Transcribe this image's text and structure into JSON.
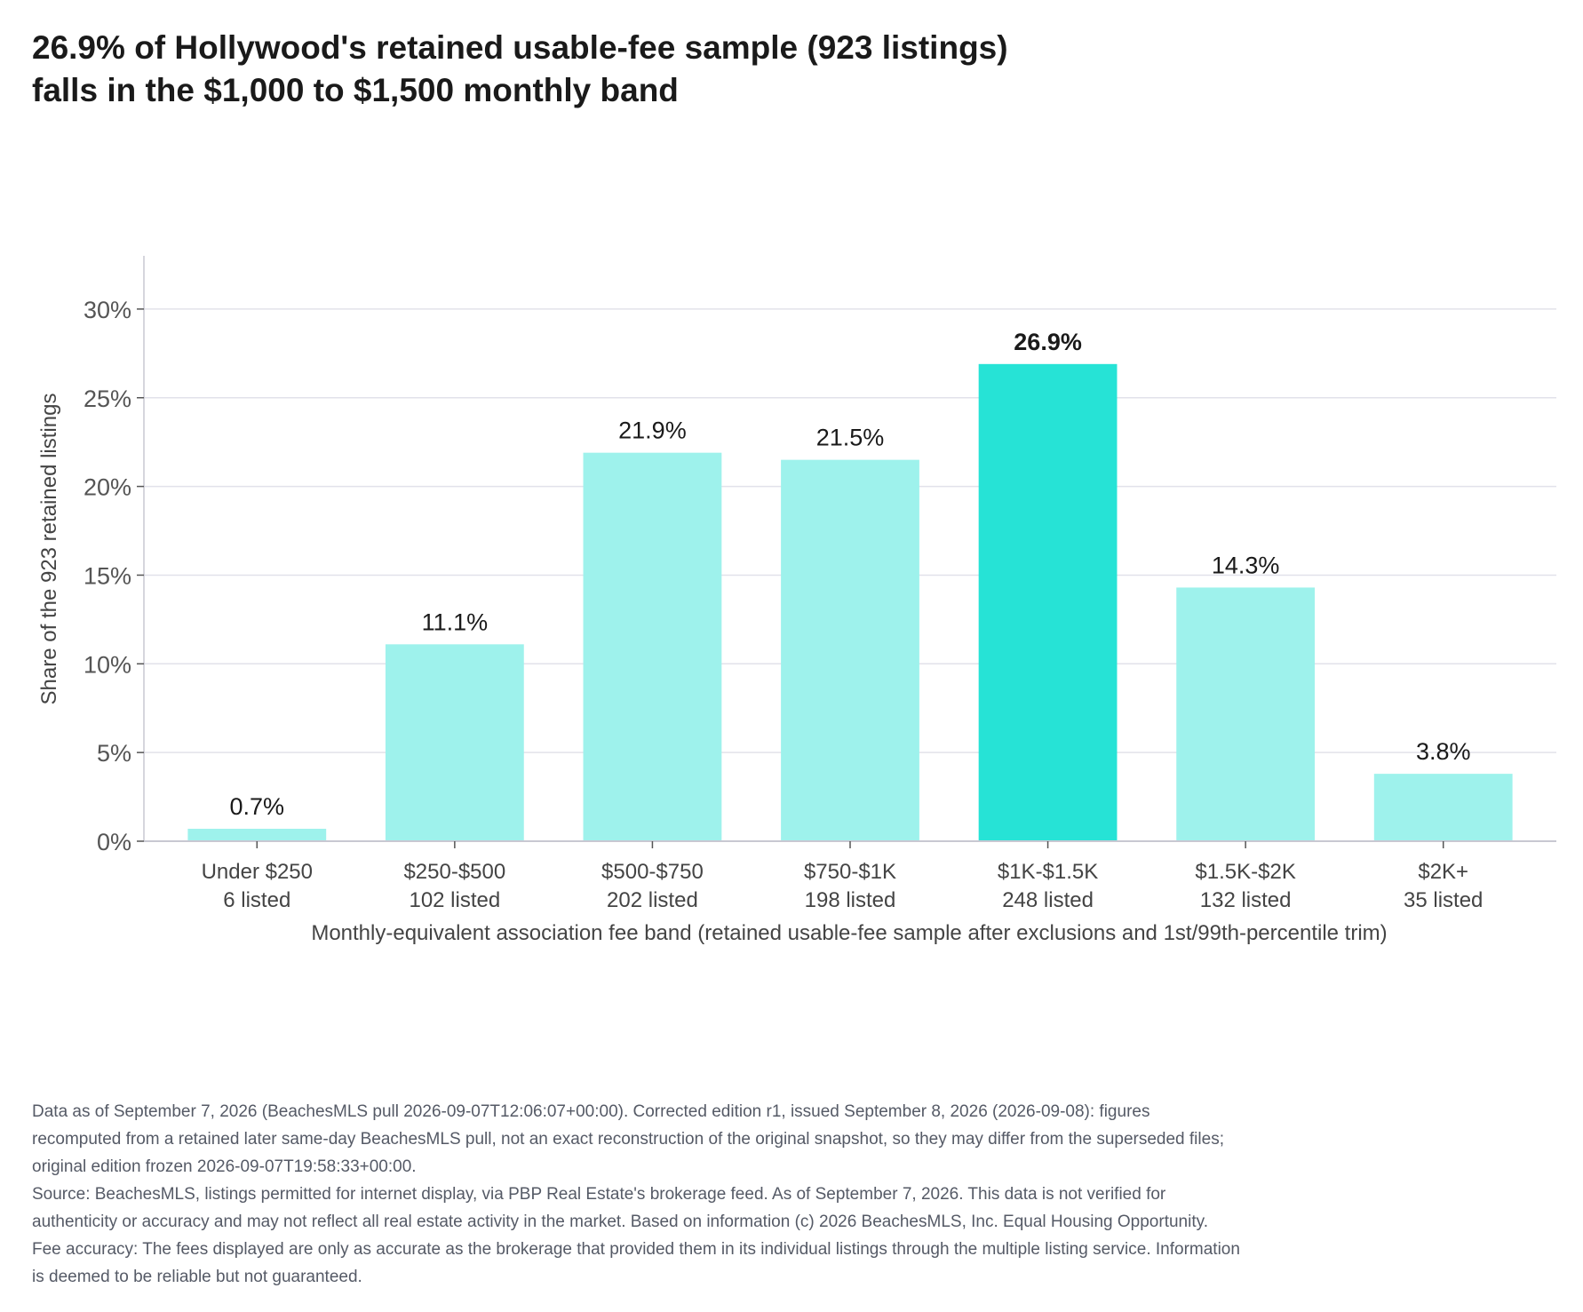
{
  "header": {
    "title_line1": "26.9% of Hollywood's retained usable-fee sample (923 listings)",
    "title_line2": "falls in the $1,000 to $1,500 monthly band"
  },
  "chart_data": {
    "type": "bar",
    "categories": [
      "Under $250",
      "$250-$500",
      "$500-$750",
      "$750-$1K",
      "$1K-$1.5K",
      "$1.5K-$2K",
      "$2K+"
    ],
    "counts": [
      "6 listed",
      "102 listed",
      "202 listed",
      "198 listed",
      "248 listed",
      "132 listed",
      "35 listed"
    ],
    "values": [
      0.7,
      11.1,
      21.9,
      21.5,
      26.9,
      14.3,
      3.8
    ],
    "value_labels": [
      "0.7%",
      "11.1%",
      "21.9%",
      "21.5%",
      "26.9%",
      "14.3%",
      "3.8%"
    ],
    "highlight_index": 4,
    "xlabel": "Monthly-equivalent association fee band (retained usable-fee sample after exclusions and 1st/99th-percentile trim)",
    "ylabel": "Share of the 923 retained listings",
    "ylim": [
      0,
      33
    ],
    "yticks": [
      0,
      5,
      10,
      15,
      20,
      25,
      30
    ],
    "ytick_labels": [
      "0%",
      "5%",
      "10%",
      "15%",
      "20%",
      "25%",
      "30%"
    ],
    "grid": true,
    "colors": {
      "bar": "#9ef2ec",
      "highlight": "#26e3d6",
      "grid": "#e2e2ea",
      "axis": "#c8c8d2"
    }
  },
  "notes": {
    "line1": "Data as of September 7, 2026 (BeachesMLS pull 2026-09-07T12:06:07+00:00). Corrected edition r1, issued September 8, 2026 (2026-09-08): figures recomputed from a retained later same-day BeachesMLS pull, not an exact reconstruction of the original snapshot, so they may differ from the superseded files; original edition frozen 2026-09-07T19:58:33+00:00.",
    "line2": "Source: BeachesMLS, listings permitted for internet display, via PBP Real Estate's brokerage feed. As of September 7, 2026. This data is not verified for authenticity or accuracy and may not reflect all real estate activity in the market. Based on information (c) 2026 BeachesMLS, Inc. Equal Housing Opportunity. Fee accuracy: The fees displayed are only as accurate as the brokerage that provided them in its individual listings through the multiple listing service. Information is deemed to be reliable but not guaranteed."
  }
}
